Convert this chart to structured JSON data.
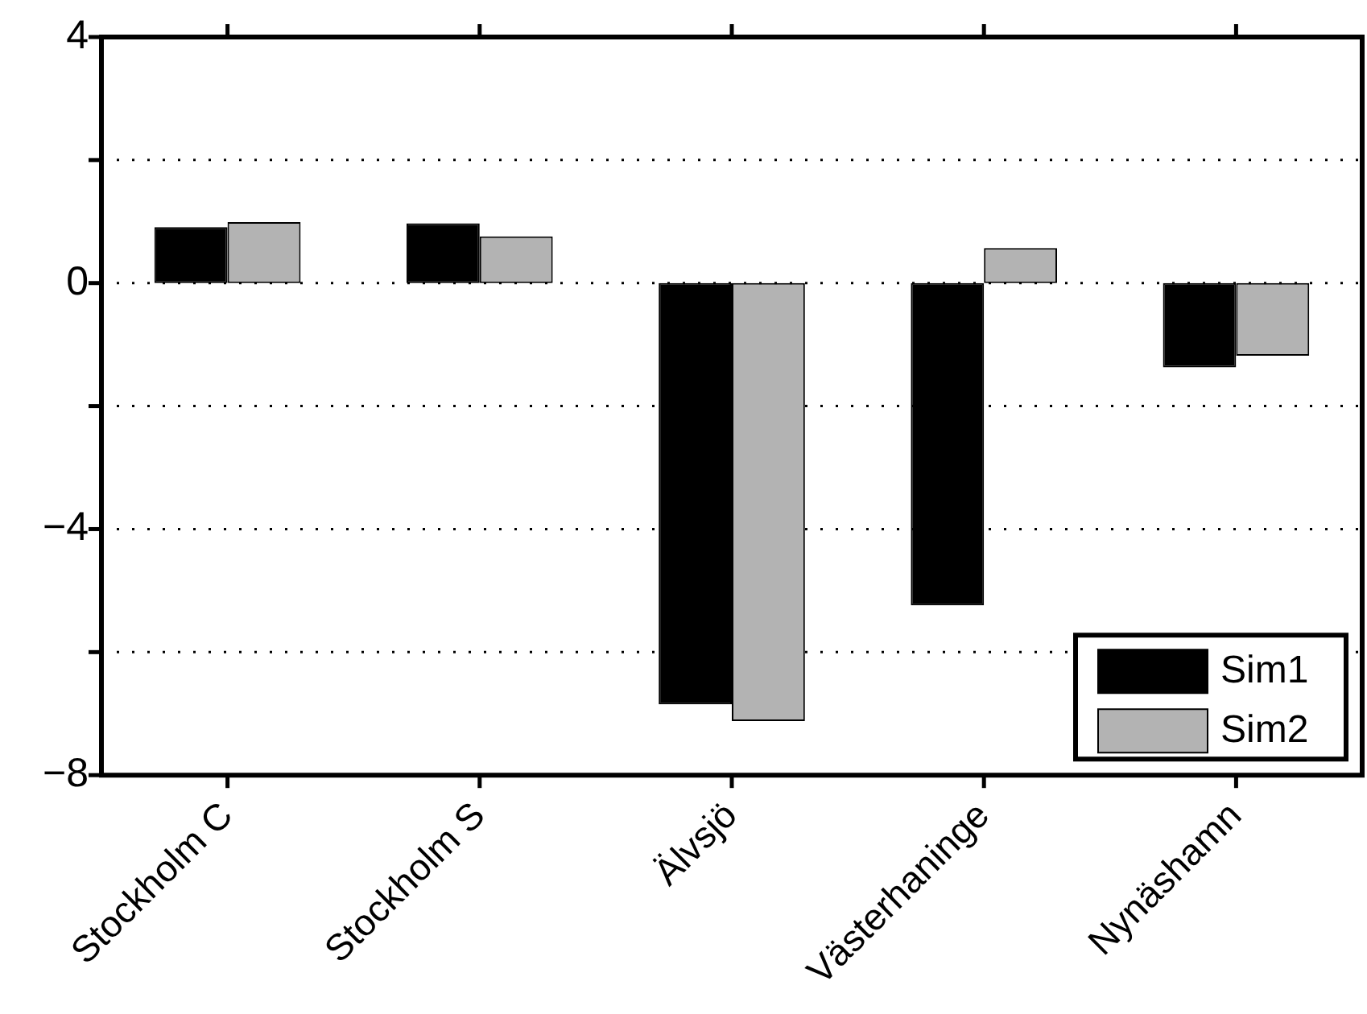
{
  "chart_data": {
    "type": "bar",
    "categories": [
      "Stockholm C",
      "Stockholm S",
      "Älvsjö",
      "Västerhaninge",
      "Nynäshamn"
    ],
    "series": [
      {
        "name": "Sim1",
        "color": "#000000",
        "values": [
          0.91,
          0.97,
          -6.85,
          -5.24,
          -1.37
        ]
      },
      {
        "name": "Sim2",
        "color": "#b3b3b3",
        "values": [
          0.99,
          0.76,
          -7.12,
          0.57,
          -1.18
        ]
      }
    ],
    "ylim": [
      -8,
      4
    ],
    "yticks": [
      -8,
      {
        "value": -6,
        "label": null
      },
      -4,
      {
        "value": -2,
        "label": null
      },
      0,
      {
        "value": 2,
        "label": null
      },
      4
    ],
    "grid": "y",
    "legend": "bottom right"
  }
}
